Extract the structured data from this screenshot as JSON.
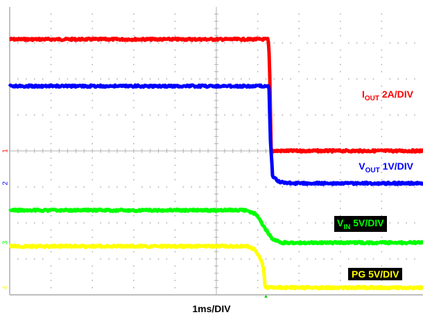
{
  "chart_data": {
    "type": "line",
    "title": "",
    "xlabel": "1ms/DIV",
    "ylabel": "",
    "grid": true,
    "x_divisions": 10,
    "y_divisions": 8,
    "x_range_div": [
      0,
      10
    ],
    "y_range_div": [
      0,
      8
    ],
    "trigger_position_div": 6.2,
    "series": [
      {
        "key": "iout",
        "name_main": "I",
        "name_sub": "OUT",
        "name_rest": " 2A/DIV",
        "color": "#ff0000",
        "marker": "1",
        "x": [
          0,
          6.25,
          6.27,
          6.3,
          6.32,
          6.35,
          10
        ],
        "y": [
          7.1,
          7.1,
          6.9,
          5.8,
          4.1,
          4.0,
          4.0
        ]
      },
      {
        "key": "vout",
        "name_main": "V",
        "name_sub": "OUT",
        "name_rest": " 1V/DIV",
        "color": "#0000ff",
        "marker": "2",
        "x": [
          0,
          6.25,
          6.28,
          6.3,
          6.36,
          6.5,
          6.8,
          10
        ],
        "y": [
          5.8,
          5.8,
          5.7,
          4.5,
          3.3,
          3.15,
          3.1,
          3.1
        ]
      },
      {
        "key": "vin",
        "name_main": "V",
        "name_sub": "IN",
        "name_rest": " 5V/DIV",
        "color": "#00ff00",
        "marker": "3",
        "x": [
          0,
          5.7,
          5.95,
          6.15,
          6.35,
          6.6,
          10
        ],
        "y": [
          2.35,
          2.35,
          2.25,
          1.9,
          1.55,
          1.45,
          1.45
        ]
      },
      {
        "key": "pg",
        "name_main": "PG 5V/DIV",
        "name_sub": "",
        "name_rest": "",
        "color": "#ffff00",
        "marker": "4",
        "x": [
          0,
          5.75,
          5.95,
          6.1,
          6.15,
          6.18,
          6.7,
          10
        ],
        "y": [
          1.35,
          1.35,
          1.25,
          0.9,
          0.7,
          0.2,
          0.2,
          0.2
        ]
      }
    ]
  }
}
